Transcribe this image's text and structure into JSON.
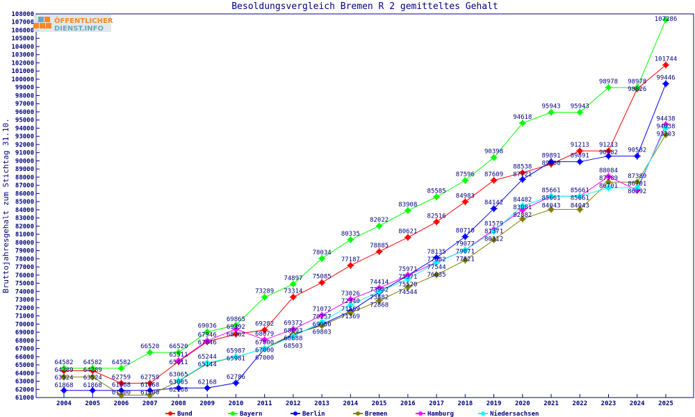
{
  "chart_data": {
    "type": "line",
    "title": "Besoldungsvergleich Bremen R 2 gemitteltes Gehalt",
    "ylabel": "Bruttojahresgehalt zum Stichtag 31.10.",
    "xlabel": "",
    "ylim": [
      61000,
      108000
    ],
    "ystep": 1000,
    "grid": false,
    "legend_placement": "bottom",
    "x": [
      "2004",
      "2005",
      "2006",
      "2007",
      "2008",
      "2009",
      "2010",
      "2011",
      "2012",
      "2013",
      "2014",
      "2015",
      "2016",
      "2017",
      "2018",
      "2019",
      "2020",
      "2021",
      "2022",
      "2023",
      "2024",
      "2025"
    ],
    "series": [
      {
        "name": "Bund",
        "color": "#ff0000",
        "values": [
          64289,
          64289,
          62759,
          62759,
          65411,
          67846,
          68762,
          69282,
          73314,
          75085,
          77187,
          78885,
          80621,
          82516,
          84983,
          87609,
          88538,
          89600,
          91213,
          91213,
          98826,
          101744
        ]
      },
      {
        "name": "Bayern",
        "color": "#00ff00",
        "values": [
          64582,
          64582,
          64582,
          66520,
          66520,
          69036,
          69865,
          73289,
          74897,
          78034,
          80335,
          82022,
          83908,
          85585,
          87596,
          90398,
          94618,
          95943,
          95943,
          98978,
          98978,
          107286
        ]
      },
      {
        "name": "Berlin",
        "color": "#0000ff",
        "values": [
          61868,
          61868,
          61868,
          61868,
          62168,
          62168,
          62786,
          67000,
          68688,
          69950,
          71569,
          73882,
          75971,
          78135,
          80710,
          84142,
          87721,
          89891,
          89891,
          90582,
          90582,
          99446
        ]
      },
      {
        "name": "Bremen",
        "color": "#808000",
        "values": [
          63524,
          63524,
          61300,
          61300,
          63005,
          65144,
          65981,
          67000,
          68803,
          69803,
          71369,
          72868,
          74544,
          76035,
          77821,
          80312,
          82882,
          84043,
          84043,
          87389,
          87389,
          93203
        ]
      },
      {
        "name": "Hamburg",
        "color": "#ff00ff",
        "values": [
          null,
          null,
          null,
          null,
          65511,
          67946,
          69392,
          68079,
          69372,
          71072,
          73026,
          74414,
          75971,
          77582,
          79077,
          81579,
          83981,
          85661,
          85661,
          88084,
          86392,
          94438
        ]
      },
      {
        "name": "Niedersachsen",
        "color": "#00ffff",
        "values": [
          null,
          null,
          null,
          null,
          63065,
          65244,
          65987,
          67000,
          68503,
          70257,
          72340,
          73982,
          75520,
          77544,
          79071,
          81371,
          84482,
          85661,
          85661,
          86701,
          86701,
          94038
        ]
      }
    ]
  },
  "logo": {
    "line1": "ÖFFENTLICHER",
    "line2": "DIENST.INFO"
  }
}
